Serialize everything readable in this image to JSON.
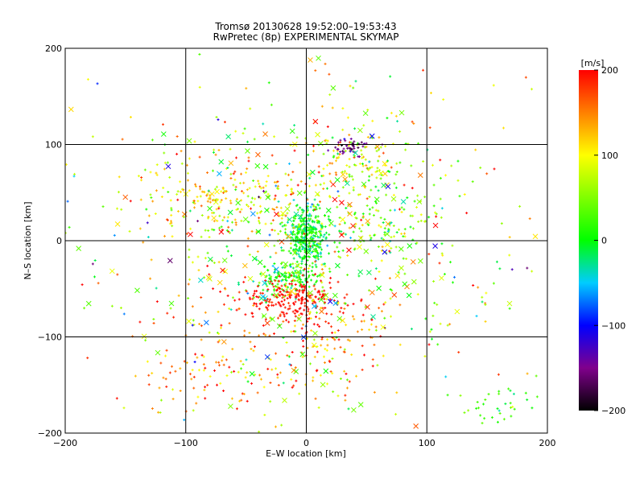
{
  "chart_data": {
    "type": "scatter",
    "title": "Tromsø 20130628 19:52:00–19:53:43",
    "subtitle": "RwPretec (8p) EXPERIMENTAL SKYMAP",
    "xlabel": "E–W location [km]",
    "ylabel": "N–S location [km]",
    "xlim": [
      -200,
      200
    ],
    "ylim": [
      -200,
      200
    ],
    "x_ticks": [
      -200,
      -100,
      0,
      100,
      200
    ],
    "y_ticks": [
      -200,
      -100,
      0,
      100,
      200
    ],
    "x_tick_labels": [
      "−200",
      "−100",
      "0",
      "100",
      "200"
    ],
    "y_tick_labels": [
      "−200",
      "−100",
      "0",
      "100",
      "200"
    ],
    "grid": true,
    "markers": [
      "+",
      "x"
    ],
    "colorbar": {
      "label": "[m/s]",
      "range": [
        -200,
        200
      ],
      "ticks": [
        200,
        100,
        0,
        -100,
        -200
      ],
      "tick_labels": [
        "200",
        "100",
        "0",
        "−100",
        "−200"
      ],
      "placement": "right",
      "colormap_stops": [
        {
          "value": -200,
          "color": "#000000"
        },
        {
          "value": -150,
          "color": "#80008c"
        },
        {
          "value": -100,
          "color": "#0000ff"
        },
        {
          "value": -50,
          "color": "#00ccff"
        },
        {
          "value": 0,
          "color": "#00ff00"
        },
        {
          "value": 100,
          "color": "#ffff00"
        },
        {
          "value": 150,
          "color": "#ff8000"
        },
        {
          "value": 200,
          "color": "#ff0000"
        }
      ]
    },
    "clusters": [
      {
        "region": "central",
        "cx": 0,
        "cy": 5,
        "sx": 8,
        "sy": 14,
        "n": 380,
        "v": 0,
        "vs": 25,
        "marker": "+"
      },
      {
        "region": "south-central",
        "cx": -12,
        "cy": -38,
        "sx": 14,
        "sy": 9,
        "n": 160,
        "v": 10,
        "vs": 30,
        "marker": "+"
      },
      {
        "region": "red-band",
        "cx": -12,
        "cy": -60,
        "sx": 22,
        "sy": 11,
        "n": 220,
        "v": 195,
        "vs": 8,
        "marker": "+"
      },
      {
        "region": "south-tail",
        "cx": 5,
        "cy": -100,
        "sx": 30,
        "sy": 30,
        "n": 160,
        "v": 150,
        "vs": 45,
        "marker": "+"
      },
      {
        "region": "northeast",
        "cx": 40,
        "cy": 85,
        "sx": 25,
        "sy": 20,
        "n": 120,
        "v": 90,
        "vs": 50,
        "marker": "+"
      },
      {
        "region": "purple-patch",
        "cx": 40,
        "cy": 98,
        "sx": 9,
        "sy": 5,
        "n": 45,
        "v": -160,
        "vs": 20,
        "marker": "+"
      },
      {
        "region": "west-arc",
        "cx": -60,
        "cy": 40,
        "sx": 40,
        "sy": 20,
        "n": 230,
        "v": 110,
        "vs": 45,
        "marker": "+"
      },
      {
        "region": "east-mid",
        "cx": 55,
        "cy": 20,
        "sx": 30,
        "sy": 25,
        "n": 120,
        "v": 40,
        "vs": 40,
        "marker": "+"
      },
      {
        "region": "far-southwest",
        "cx": -80,
        "cy": -140,
        "sx": 30,
        "sy": 30,
        "n": 90,
        "v": 150,
        "vs": 45,
        "marker": "+"
      },
      {
        "region": "southeast-corner",
        "cx": 160,
        "cy": -170,
        "sx": 18,
        "sy": 12,
        "n": 35,
        "v": 25,
        "vs": 25,
        "marker": "+"
      },
      {
        "region": "scattered",
        "cx": 0,
        "cy": 0,
        "sx": 110,
        "sy": 110,
        "n": 520,
        "v": 60,
        "vs": 80,
        "marker": "+"
      },
      {
        "region": "cross-markers",
        "cx": -5,
        "cy": 0,
        "sx": 70,
        "sy": 80,
        "n": 190,
        "v": 70,
        "vs": 80,
        "marker": "x"
      }
    ]
  }
}
